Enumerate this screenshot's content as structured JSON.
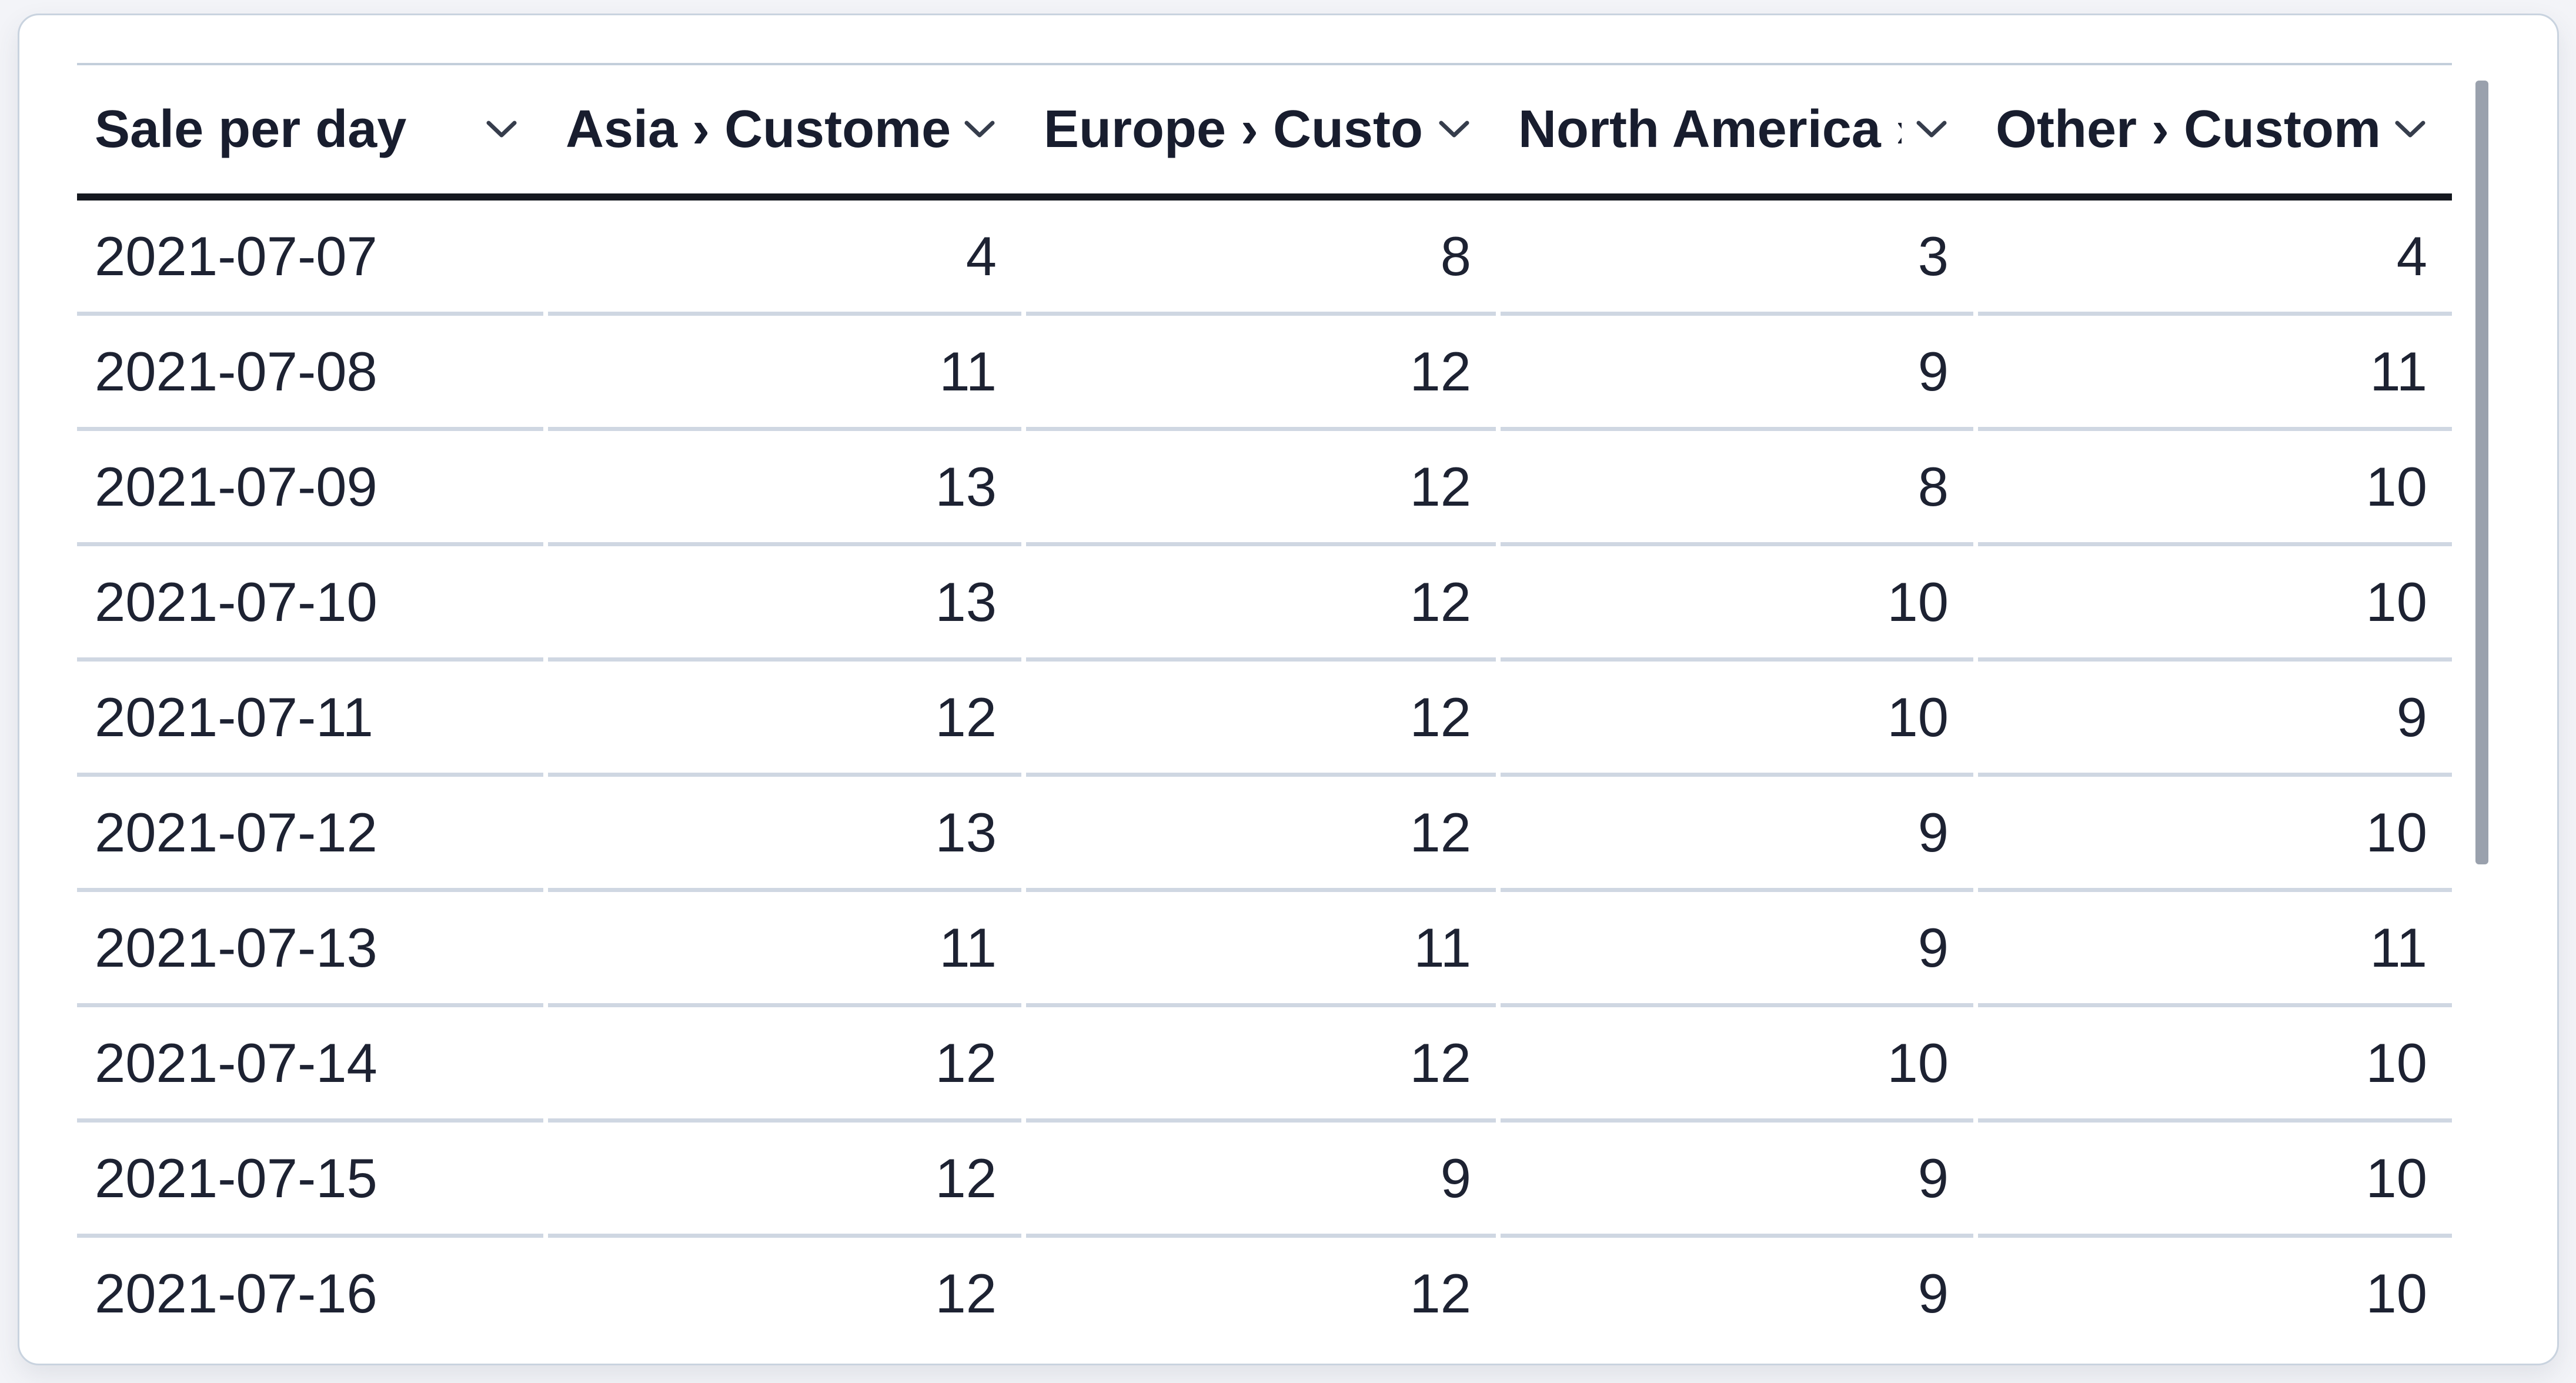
{
  "widget": {
    "type": "data-table",
    "scrollbar": {
      "visible": true,
      "orientation": "vertical"
    }
  },
  "colors": {
    "page_bg": "#f3f4f8",
    "card_bg": "#ffffff",
    "card_border": "#c9d3df",
    "header_text": "#181d2e",
    "body_text": "#1d2232",
    "header_underline": "#15181f",
    "row_separator": "#cfd7e2",
    "top_rule": "#c3cedb",
    "scrollbar": "#9aa1ad",
    "chevron": "#363d4c"
  },
  "icons": {
    "sort": "chevron-down-icon"
  },
  "table": {
    "columns": [
      {
        "label": "Sale per day",
        "align": "left",
        "sortable": true
      },
      {
        "label": "Asia › Customers",
        "align": "right",
        "sortable": true
      },
      {
        "label": "Europe › Customers",
        "align": "right",
        "sortable": true
      },
      {
        "label": "North America › Customers",
        "align": "right",
        "sortable": true
      },
      {
        "label": "Other › Customers",
        "align": "right",
        "sortable": true
      }
    ],
    "rows": [
      {
        "date": "2021-07-07",
        "values": [
          "4",
          "8",
          "3",
          "4"
        ]
      },
      {
        "date": "2021-07-08",
        "values": [
          "11",
          "12",
          "9",
          "11"
        ]
      },
      {
        "date": "2021-07-09",
        "values": [
          "13",
          "12",
          "8",
          "10"
        ]
      },
      {
        "date": "2021-07-10",
        "values": [
          "13",
          "12",
          "10",
          "10"
        ]
      },
      {
        "date": "2021-07-11",
        "values": [
          "12",
          "12",
          "10",
          "9"
        ]
      },
      {
        "date": "2021-07-12",
        "values": [
          "13",
          "12",
          "9",
          "10"
        ]
      },
      {
        "date": "2021-07-13",
        "values": [
          "11",
          "11",
          "9",
          "11"
        ]
      },
      {
        "date": "2021-07-14",
        "values": [
          "12",
          "12",
          "10",
          "10"
        ]
      },
      {
        "date": "2021-07-15",
        "values": [
          "12",
          "9",
          "9",
          "10"
        ]
      },
      {
        "date": "2021-07-16",
        "values": [
          "12",
          "12",
          "9",
          "10"
        ]
      }
    ]
  }
}
